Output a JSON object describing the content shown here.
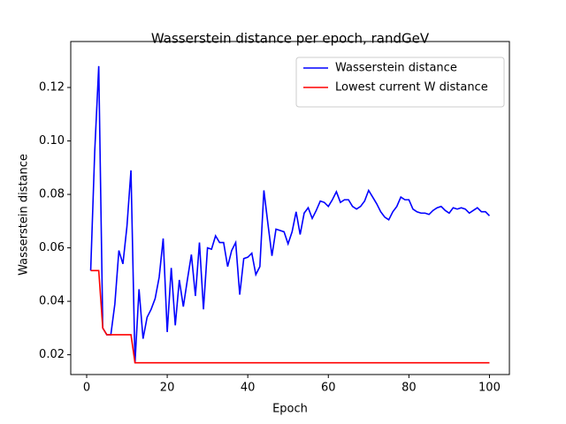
{
  "chart_data": {
    "type": "line",
    "title": "Wasserstein distance per epoch, randGeV",
    "x_label": "Epoch",
    "y_label": "Wasserstein distance",
    "x": [
      1,
      2,
      3,
      4,
      5,
      6,
      7,
      8,
      9,
      10,
      11,
      12,
      13,
      14,
      15,
      16,
      17,
      18,
      19,
      20,
      21,
      22,
      23,
      24,
      25,
      26,
      27,
      28,
      29,
      30,
      31,
      32,
      33,
      34,
      35,
      36,
      37,
      38,
      39,
      40,
      41,
      42,
      43,
      44,
      45,
      46,
      47,
      48,
      49,
      50,
      51,
      52,
      53,
      54,
      55,
      56,
      57,
      58,
      59,
      60,
      61,
      62,
      63,
      64,
      65,
      66,
      67,
      68,
      69,
      70,
      71,
      72,
      73,
      74,
      75,
      76,
      77,
      78,
      79,
      80,
      81,
      82,
      83,
      84,
      85,
      86,
      87,
      88,
      89,
      90,
      91,
      92,
      93,
      94,
      95,
      96,
      97,
      98,
      99,
      100
    ],
    "series": [
      {
        "name": "Wasserstein distance",
        "color": "#0000ff",
        "values": [
          0.0515,
          0.096,
          0.128,
          0.03,
          0.0275,
          0.0275,
          0.039,
          0.059,
          0.054,
          0.068,
          0.089,
          0.017,
          0.0445,
          0.026,
          0.034,
          0.037,
          0.041,
          0.049,
          0.0635,
          0.0285,
          0.0525,
          0.031,
          0.048,
          0.038,
          0.048,
          0.0575,
          0.042,
          0.062,
          0.037,
          0.06,
          0.0595,
          0.0645,
          0.062,
          0.062,
          0.053,
          0.059,
          0.062,
          0.0425,
          0.056,
          0.0565,
          0.058,
          0.05,
          0.053,
          0.0815,
          0.069,
          0.057,
          0.067,
          0.0665,
          0.066,
          0.0615,
          0.066,
          0.0735,
          0.065,
          0.073,
          0.075,
          0.071,
          0.074,
          0.0775,
          0.077,
          0.0755,
          0.078,
          0.081,
          0.077,
          0.078,
          0.078,
          0.0755,
          0.0745,
          0.0755,
          0.0775,
          0.0815,
          0.079,
          0.0765,
          0.0735,
          0.0715,
          0.0705,
          0.0735,
          0.0755,
          0.079,
          0.078,
          0.078,
          0.0745,
          0.0735,
          0.073,
          0.073,
          0.0725,
          0.074,
          0.075,
          0.0755,
          0.074,
          0.073,
          0.075,
          0.0745,
          0.075,
          0.0745,
          0.073,
          0.074,
          0.075,
          0.0735,
          0.0735,
          0.072
        ]
      },
      {
        "name": "Lowest current W distance",
        "color": "#ff0000",
        "values": [
          0.0515,
          0.0515,
          0.0515,
          0.03,
          0.0275,
          0.0275,
          0.0275,
          0.0275,
          0.0275,
          0.0275,
          0.0275,
          0.017,
          0.017,
          0.017,
          0.017,
          0.017,
          0.017,
          0.017,
          0.017,
          0.017,
          0.017,
          0.017,
          0.017,
          0.017,
          0.017,
          0.017,
          0.017,
          0.017,
          0.017,
          0.017,
          0.017,
          0.017,
          0.017,
          0.017,
          0.017,
          0.017,
          0.017,
          0.017,
          0.017,
          0.017,
          0.017,
          0.017,
          0.017,
          0.017,
          0.017,
          0.017,
          0.017,
          0.017,
          0.017,
          0.017,
          0.017,
          0.017,
          0.017,
          0.017,
          0.017,
          0.017,
          0.017,
          0.017,
          0.017,
          0.017,
          0.017,
          0.017,
          0.017,
          0.017,
          0.017,
          0.017,
          0.017,
          0.017,
          0.017,
          0.017,
          0.017,
          0.017,
          0.017,
          0.017,
          0.017,
          0.017,
          0.017,
          0.017,
          0.017,
          0.017,
          0.017,
          0.017,
          0.017,
          0.017,
          0.017,
          0.017,
          0.017,
          0.017,
          0.017,
          0.017,
          0.017,
          0.017,
          0.017,
          0.017,
          0.017,
          0.017,
          0.017,
          0.017,
          0.017,
          0.017
        ]
      }
    ],
    "xlim": [
      -3.95,
      104.95
    ],
    "ylim": [
      0.0126,
      0.1372
    ],
    "xticks": [
      0,
      20,
      40,
      60,
      80,
      100
    ],
    "yticks": [
      0.02,
      0.04,
      0.06,
      0.08,
      {
        "value": 0.1,
        "label": "0.10"
      },
      0.12
    ],
    "legend": "upper right"
  }
}
